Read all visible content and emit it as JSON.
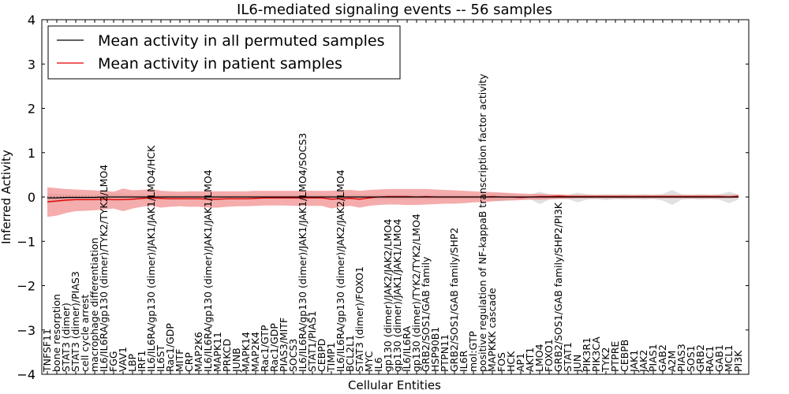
{
  "chart_data": {
    "type": "line",
    "title": "IL6-mediated signaling events -- 56 samples",
    "xlabel": "Cellular Entities",
    "ylabel": "Inferred Activity",
    "ylim": [
      -4,
      4
    ],
    "yticks": [
      -4,
      -3,
      -2,
      -1,
      0,
      1,
      2,
      3,
      4
    ],
    "legend": {
      "position": "top-left",
      "entries": [
        {
          "label": "Mean activity in all permuted samples",
          "color": "#000000"
        },
        {
          "label": "Mean activity in patient samples",
          "color": "#e00000"
        }
      ]
    },
    "categories": [
      "TNFSF11",
      "bone resorption",
      "STAT3 (dimer)",
      "STAT3 (dimer)/PIAS3",
      "cell cycle arrest",
      "macrophage differentiation",
      "IL6/IL6RA/gp130 (dimer)/TYK2/TYK2/LMO4",
      "FGG",
      "VAV1",
      "LBP",
      "IRF1",
      "IL6/IL6RA/gp130 (dimer)/JAK1/JAK1/LMO4/HCK",
      "IL6ST",
      "Rac1/GDP",
      "MITF",
      "CRP",
      "MAP2K6",
      "IL6/IL6RA/gp130 (dimer)/JAK1/JAK1/LMO4",
      "MAPK11",
      "PRKCD",
      "JUNB",
      "MAPK14",
      "MAP2K4",
      "Rac1/GTP",
      "Rac1/GDP",
      "PIAS3/MITF",
      "SOCS3",
      "IL6/IL6RA/gp130 (dimer)/JAK1/JAK1/LMO4/SOCS3",
      "STAT1/PIAS1",
      "CEBPD",
      "TIMP1",
      "IL6/IL6RA/gp130 (dimer)/JAK2/JAK2/LMO4",
      "BCL2L1",
      "STAT3 (dimer)/FOXO1",
      "MYC",
      "IL6",
      "gp130 (dimer)/JAK2/JAK2/LMO4",
      "gp130 (dimer)/JAK1/JAK1/LMO4",
      "IL6/IL6RA",
      "gp130 (dimer)/TYK2/TYK2/LMO4",
      "GRB2/SOS1/GAB family",
      "HSP90B1",
      "PTPN11",
      "GRB2/SOS1/GAB family/SHP2",
      "IL6R",
      "mol:GTP",
      "positive regulation of NF-kappaB transcription factor activity",
      "MAPKKK cascade",
      "FOS",
      "HCK",
      "AP1",
      "AKT1",
      "LMO4",
      "FOXO1",
      "GRB2/SOS1/GAB family/SHP2/PI3K",
      "STAT1",
      "JUN",
      "PIK3R1",
      "PIK3CA",
      "TYK2",
      "PTPRE",
      "CEBPB",
      "JAK1",
      "JAK2",
      "PIAS1",
      "GAB2",
      "A2M",
      "PIAS3",
      "SOS1",
      "GRB2",
      "RAC1",
      "GAB1",
      "MCL1",
      "PI3K"
    ],
    "series": [
      {
        "name": "Mean activity in patient samples",
        "color": "#e00000",
        "values": [
          -0.11,
          -0.09,
          -0.07,
          -0.06,
          -0.06,
          -0.06,
          -0.05,
          -0.06,
          -0.06,
          -0.05,
          -0.03,
          -0.02,
          -0.03,
          -0.04,
          -0.04,
          -0.04,
          -0.04,
          -0.05,
          -0.05,
          -0.04,
          -0.04,
          -0.04,
          -0.03,
          -0.02,
          -0.02,
          -0.02,
          -0.02,
          -0.02,
          -0.02,
          -0.02,
          -0.05,
          -0.04,
          -0.03,
          -0.05,
          -0.02,
          0.0,
          0.01,
          0.01,
          0.01,
          0.0,
          0.01,
          0.0,
          0.0,
          0.0,
          0.0,
          0.0,
          0.0,
          0.01,
          0.0,
          0.0,
          -0.01,
          0.0,
          0.01,
          0.01,
          0.02,
          0.01,
          0.01,
          0.01,
          0.01,
          0.01,
          0.01,
          0.01,
          0.01,
          0.01,
          0.01,
          0.01,
          0.01,
          0.01,
          0.01,
          0.01,
          0.01,
          0.01,
          0.0,
          0.02
        ],
        "lower": [
          -0.45,
          -0.42,
          -0.36,
          -0.32,
          -0.31,
          -0.3,
          -0.28,
          -0.26,
          -0.32,
          -0.26,
          -0.22,
          -0.2,
          -0.24,
          -0.22,
          -0.21,
          -0.22,
          -0.22,
          -0.24,
          -0.24,
          -0.22,
          -0.21,
          -0.21,
          -0.2,
          -0.19,
          -0.19,
          -0.19,
          -0.2,
          -0.2,
          -0.2,
          -0.2,
          -0.26,
          -0.22,
          -0.2,
          -0.24,
          -0.2,
          -0.18,
          -0.17,
          -0.17,
          -0.18,
          -0.18,
          -0.17,
          -0.16,
          -0.15,
          -0.15,
          -0.14,
          -0.12,
          -0.12,
          -0.1,
          -0.08,
          -0.08,
          -0.07,
          -0.06,
          -0.06,
          -0.05,
          -0.04,
          -0.04,
          -0.03,
          -0.03,
          -0.03,
          -0.03,
          -0.03,
          -0.03,
          -0.03,
          -0.03,
          -0.03,
          -0.03,
          -0.03,
          -0.03,
          -0.03,
          -0.03,
          -0.03,
          -0.03,
          -0.03,
          -0.02
        ],
        "upper": [
          0.22,
          0.2,
          0.18,
          0.17,
          0.16,
          0.15,
          0.14,
          0.12,
          0.19,
          0.15,
          0.16,
          0.18,
          0.14,
          0.13,
          0.12,
          0.13,
          0.13,
          0.13,
          0.13,
          0.13,
          0.13,
          0.13,
          0.14,
          0.14,
          0.14,
          0.14,
          0.14,
          0.14,
          0.14,
          0.14,
          0.14,
          0.15,
          0.16,
          0.14,
          0.16,
          0.17,
          0.18,
          0.18,
          0.18,
          0.18,
          0.18,
          0.17,
          0.16,
          0.15,
          0.14,
          0.13,
          0.12,
          0.11,
          0.1,
          0.09,
          0.08,
          0.07,
          0.07,
          0.06,
          0.06,
          0.05,
          0.05,
          0.05,
          0.05,
          0.05,
          0.05,
          0.05,
          0.05,
          0.05,
          0.05,
          0.05,
          0.05,
          0.05,
          0.05,
          0.05,
          0.05,
          0.05,
          0.05,
          0.05
        ]
      },
      {
        "name": "Mean activity in all permuted samples",
        "color": "#000000",
        "values": [
          -0.02,
          -0.02,
          -0.01,
          -0.01,
          -0.01,
          -0.01,
          0.0,
          0.0,
          0.0,
          0.0,
          0.0,
          0.0,
          0.0,
          0.0,
          0.0,
          0.0,
          0.0,
          0.0,
          0.0,
          0.0,
          0.0,
          0.0,
          0.0,
          0.0,
          0.0,
          0.0,
          0.0,
          0.0,
          0.0,
          0.0,
          0.0,
          0.0,
          0.0,
          0.0,
          0.0,
          0.0,
          0.0,
          0.0,
          0.0,
          0.0,
          0.0,
          0.0,
          0.0,
          0.0,
          0.0,
          0.0,
          0.0,
          0.0,
          0.0,
          0.0,
          0.0,
          0.0,
          0.0,
          0.0,
          0.0,
          0.0,
          0.0,
          0.0,
          0.0,
          0.0,
          0.0,
          0.0,
          0.0,
          0.0,
          0.0,
          0.0,
          0.0,
          0.0,
          0.0,
          0.0,
          0.0,
          0.0,
          0.0,
          0.0
        ],
        "lower": [
          -0.14,
          -0.12,
          -0.1,
          -0.09,
          -0.08,
          -0.08,
          -0.07,
          -0.1,
          -0.08,
          -0.07,
          -0.06,
          -0.08,
          -0.06,
          -0.06,
          -0.05,
          -0.05,
          -0.05,
          -0.05,
          -0.05,
          -0.05,
          -0.05,
          -0.05,
          -0.05,
          -0.05,
          -0.05,
          -0.05,
          -0.05,
          -0.05,
          -0.05,
          -0.05,
          -0.05,
          -0.05,
          -0.05,
          -0.05,
          -0.05,
          -0.05,
          -0.05,
          -0.05,
          -0.05,
          -0.05,
          -0.05,
          -0.05,
          -0.05,
          -0.05,
          -0.05,
          -0.05,
          -0.05,
          -0.08,
          -0.1,
          -0.06,
          -0.05,
          -0.05,
          -0.16,
          -0.06,
          -0.05,
          -0.05,
          -0.12,
          -0.06,
          -0.05,
          -0.07,
          -0.05,
          -0.06,
          -0.05,
          -0.06,
          -0.05,
          -0.08,
          -0.18,
          -0.06,
          -0.05,
          -0.06,
          -0.05,
          -0.06,
          -0.14,
          -0.06
        ],
        "upper": [
          0.08,
          0.07,
          0.06,
          0.05,
          0.05,
          0.05,
          0.05,
          0.08,
          0.06,
          0.05,
          0.05,
          0.06,
          0.05,
          0.05,
          0.05,
          0.05,
          0.05,
          0.05,
          0.05,
          0.05,
          0.05,
          0.05,
          0.05,
          0.05,
          0.05,
          0.05,
          0.05,
          0.05,
          0.05,
          0.05,
          0.05,
          0.05,
          0.05,
          0.05,
          0.05,
          0.05,
          0.05,
          0.05,
          0.05,
          0.05,
          0.05,
          0.05,
          0.05,
          0.05,
          0.05,
          0.05,
          0.05,
          0.08,
          0.09,
          0.06,
          0.05,
          0.05,
          0.12,
          0.06,
          0.05,
          0.05,
          0.1,
          0.06,
          0.05,
          0.06,
          0.05,
          0.06,
          0.05,
          0.06,
          0.05,
          0.07,
          0.16,
          0.06,
          0.05,
          0.06,
          0.05,
          0.06,
          0.12,
          0.06
        ]
      }
    ]
  }
}
